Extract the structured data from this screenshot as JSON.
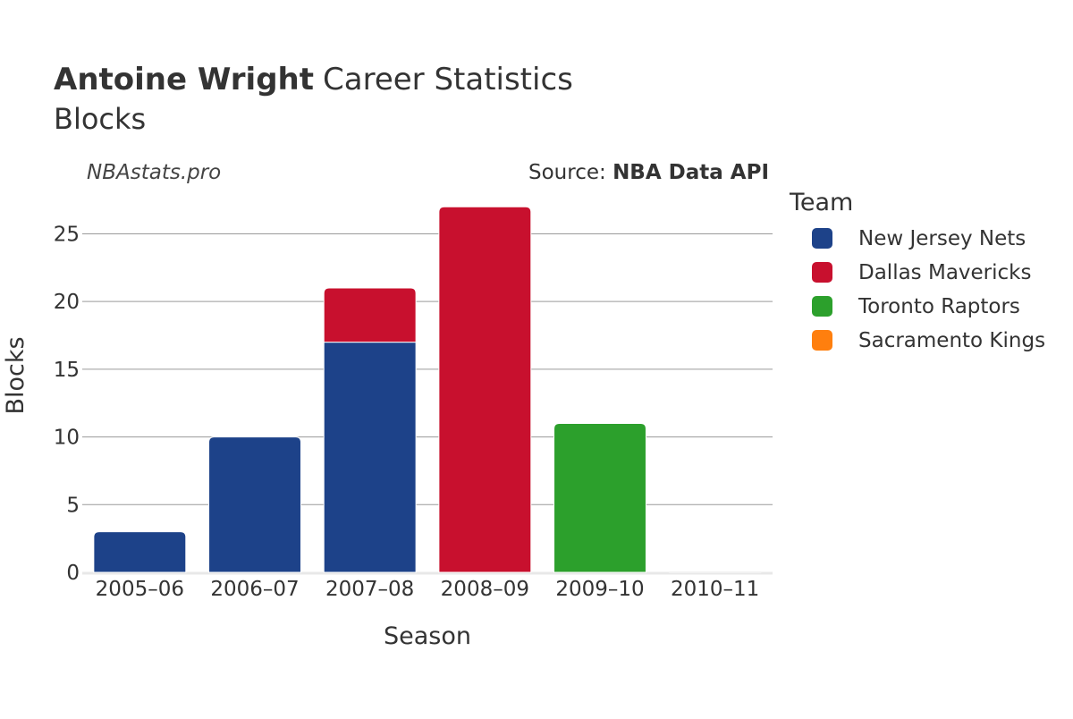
{
  "chart_data": {
    "type": "bar",
    "stacked": true,
    "title_bold": "Antoine Wright",
    "title_rest": "Career Statistics",
    "subtitle": "Blocks",
    "watermark": "NBAstats.pro",
    "source_prefix": "Source: ",
    "source_name": "NBA Data API",
    "xlabel": "Season",
    "ylabel": "Blocks",
    "categories": [
      "2005–06",
      "2006–07",
      "2007–08",
      "2008–09",
      "2009–10",
      "2010–11"
    ],
    "yticks": [
      0,
      5,
      10,
      15,
      20,
      25
    ],
    "ylim": [
      0,
      28.4
    ],
    "grid": true,
    "legend_title": "Team",
    "legend_position": "right",
    "series": [
      {
        "name": "New Jersey Nets",
        "color": "#1d4289",
        "values": [
          3,
          10,
          17,
          0,
          0,
          0
        ]
      },
      {
        "name": "Dallas Mavericks",
        "color": "#c8102e",
        "values": [
          0,
          0,
          4,
          27,
          0,
          0
        ]
      },
      {
        "name": "Toronto Raptors",
        "color": "#2ca02c",
        "values": [
          0,
          0,
          0,
          0,
          11,
          0
        ]
      },
      {
        "name": "Sacramento Kings",
        "color": "#ff7f0e",
        "values": [
          0,
          0,
          0,
          0,
          0,
          0
        ]
      }
    ]
  }
}
